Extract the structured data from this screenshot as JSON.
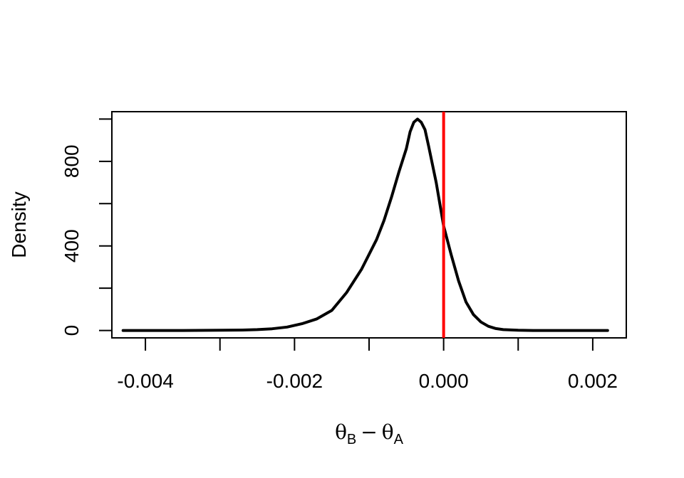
{
  "chart_data": {
    "type": "line",
    "title": "",
    "xlabel": {
      "symbol_b": "θ",
      "sub_b": "B",
      "minus": "−",
      "symbol_a": "θ",
      "sub_a": "A"
    },
    "ylabel": "Density",
    "xlim": [
      -0.00445,
      0.00245
    ],
    "ylim": [
      -35,
      1035
    ],
    "x_ticks": [
      -0.004,
      -0.003,
      -0.002,
      -0.001,
      0.0,
      0.001,
      0.002
    ],
    "x_tick_labels": [
      {
        "value": -0.004,
        "label": "-0.004"
      },
      {
        "value": -0.002,
        "label": "-0.002"
      },
      {
        "value": 0.0,
        "label": "0.000"
      },
      {
        "value": 0.002,
        "label": "0.002"
      }
    ],
    "y_ticks": [
      0,
      200,
      400,
      600,
      800,
      1000
    ],
    "y_tick_labels": [
      {
        "value": 0,
        "label": "0"
      },
      {
        "value": 400,
        "label": "400"
      },
      {
        "value": 800,
        "label": "800"
      }
    ],
    "series": [
      {
        "color": "#000000",
        "x": [
          -0.0043,
          -0.004,
          -0.0035,
          -0.003,
          -0.0027,
          -0.0025,
          -0.0023,
          -0.0021,
          -0.0019,
          -0.0017,
          -0.0015,
          -0.0013,
          -0.0011,
          -0.0009,
          -0.0008,
          -0.0007,
          -0.0006,
          -0.0005,
          -0.00045,
          -0.0004,
          -0.00035,
          -0.0003,
          -0.00025,
          -0.0002,
          -0.0001,
          0.0,
          0.0001,
          0.0002,
          0.0003,
          0.0004,
          0.0005,
          0.0006,
          0.0007,
          0.0008,
          0.001,
          0.0012,
          0.0015,
          0.0018,
          0.0022
        ],
        "y": [
          0,
          0,
          0,
          1,
          2,
          4,
          8,
          16,
          32,
          55,
          95,
          180,
          290,
          430,
          520,
          630,
          750,
          860,
          940,
          985,
          1000,
          985,
          950,
          870,
          700,
          495,
          360,
          235,
          135,
          75,
          40,
          20,
          9,
          4,
          1,
          0,
          0,
          0,
          0
        ]
      }
    ],
    "reference_lines": [
      {
        "orientation": "vertical",
        "x": 0.0,
        "color": "#ff0000"
      }
    ],
    "grid": false,
    "legend": "none"
  }
}
